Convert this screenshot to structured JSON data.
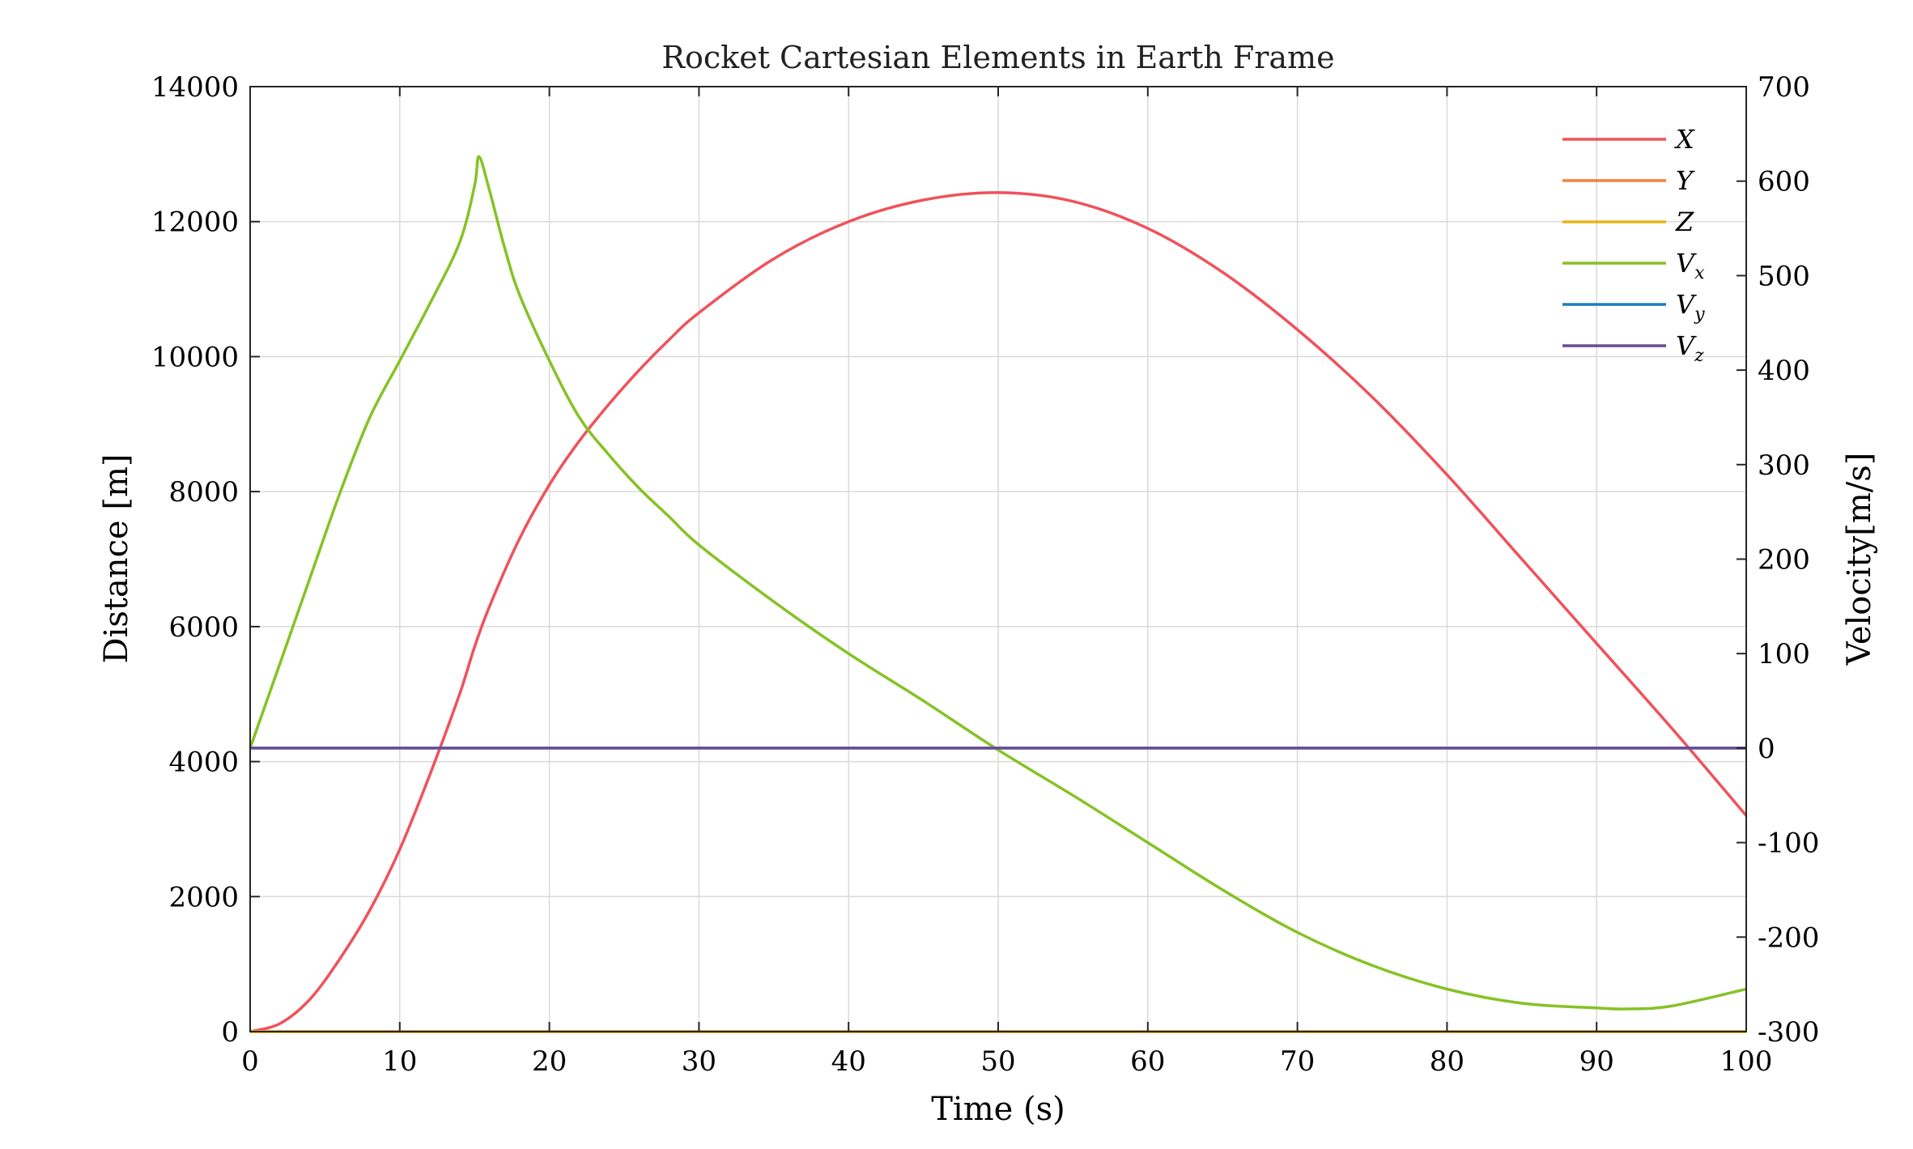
{
  "chart_data": {
    "type": "line",
    "title": "Rocket Cartesian Elements in Earth Frame",
    "xlabel": "Time (s)",
    "ylabel_left": "Distance [m]",
    "ylabel_right": "Velocity[m/s]",
    "xlim": [
      0,
      100
    ],
    "ylim_left": [
      0,
      14000
    ],
    "ylim_right": [
      -300,
      700
    ],
    "x_ticks": [
      "0",
      "10",
      "20",
      "30",
      "40",
      "50",
      "60",
      "70",
      "80",
      "90",
      "100"
    ],
    "y_ticks_left": [
      "0",
      "2000",
      "4000",
      "6000",
      "8000",
      "10000",
      "12000",
      "14000"
    ],
    "y_ticks_right": [
      "-300",
      "-200",
      "-100",
      "0",
      "100",
      "200",
      "300",
      "400",
      "500",
      "600",
      "700"
    ],
    "grid": true,
    "legend_position": "top-right",
    "series": [
      {
        "name": "X",
        "sub": "",
        "axis": "left",
        "color": "#f0515b",
        "x": [
          0,
          2,
          4,
          6,
          8,
          10,
          12,
          14,
          15,
          16,
          18,
          20,
          22,
          24,
          26,
          28,
          30,
          35,
          40,
          45,
          50,
          55,
          60,
          65,
          70,
          75,
          80,
          85,
          90,
          95,
          100
        ],
        "y": [
          0,
          120,
          480,
          1080,
          1800,
          2700,
          3800,
          5000,
          5700,
          6300,
          7300,
          8100,
          8750,
          9300,
          9800,
          10250,
          10650,
          11450,
          12000,
          12320,
          12430,
          12300,
          11900,
          11250,
          10400,
          9400,
          8250,
          7000,
          5750,
          4500,
          3200
        ]
      },
      {
        "name": "Y",
        "sub": "",
        "axis": "left",
        "color": "#f5813b",
        "x": [
          0,
          100
        ],
        "y": [
          0,
          0
        ]
      },
      {
        "name": "Z",
        "sub": "",
        "axis": "left",
        "color": "#e8b418",
        "x": [
          0,
          100
        ],
        "y": [
          0,
          0
        ]
      },
      {
        "name": "V",
        "sub": "x",
        "axis": "right",
        "color": "#86c225",
        "x": [
          0,
          2,
          4,
          6,
          8,
          10,
          12,
          14,
          15,
          15.3,
          16,
          17,
          18,
          20,
          22,
          24,
          26,
          28,
          30,
          35,
          40,
          45,
          50,
          55,
          60,
          65,
          70,
          75,
          80,
          85,
          90,
          92,
          95,
          100
        ],
        "y": [
          0,
          90,
          180,
          270,
          350,
          410,
          470,
          535,
          595,
          626,
          590,
          530,
          480,
          410,
          350,
          310,
          275,
          245,
          215,
          155,
          100,
          50,
          -2,
          -50,
          -100,
          -150,
          -195,
          -230,
          -255,
          -270,
          -275,
          -276,
          -273,
          -255
        ]
      },
      {
        "name": "V",
        "sub": "y",
        "axis": "right",
        "color": "#1f7cbf",
        "x": [
          0,
          100
        ],
        "y": [
          0,
          0
        ]
      },
      {
        "name": "V",
        "sub": "z",
        "axis": "right",
        "color": "#6a4c93",
        "x": [
          0,
          100
        ],
        "y": [
          0,
          0
        ]
      }
    ]
  }
}
